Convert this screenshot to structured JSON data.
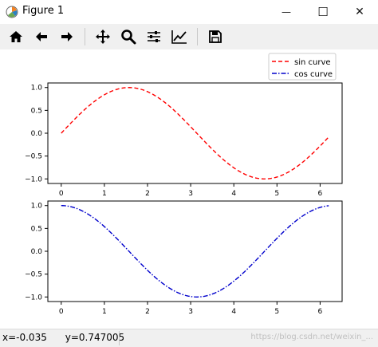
{
  "window": {
    "title": "Figure 1",
    "minimize_glyph": "—",
    "maximize_glyph": "☐",
    "close_glyph": "✕"
  },
  "toolbar": {
    "buttons": [
      "home-icon",
      "back-arrow-icon",
      "forward-arrow-icon",
      "pan-icon",
      "zoom-icon",
      "configure-subplots-icon",
      "edit-axes-icon",
      "save-icon"
    ]
  },
  "legend": {
    "sin_label": "sin curve",
    "cos_label": "cos curve"
  },
  "status": {
    "coords": "x=-0.035      y=0.747005",
    "watermark": "https://blog.csdn.net/weixin_..."
  },
  "chart_data": [
    {
      "type": "line",
      "series": [
        {
          "name": "sin curve",
          "color": "#ff0000",
          "style": "dashed",
          "function": "sin",
          "x": [
            0,
            0.5,
            1.0,
            1.5708,
            2.0,
            2.5,
            3.1416,
            3.5,
            4.0,
            4.7124,
            5.5,
            6.2
          ],
          "y": [
            0,
            0.479,
            0.841,
            1.0,
            0.909,
            0.598,
            0.0,
            -0.351,
            -0.757,
            -1.0,
            -0.706,
            -0.083
          ]
        }
      ],
      "xticks": [
        "0",
        "1",
        "2",
        "3",
        "4",
        "5",
        "6"
      ],
      "yticks": [
        "1.0",
        "0.5",
        "0.0",
        "−0.5",
        "−1.0"
      ],
      "xlim": [
        -0.31,
        6.51
      ],
      "ylim": [
        -1.1,
        1.1
      ]
    },
    {
      "type": "line",
      "series": [
        {
          "name": "cos curve",
          "color": "#0000cc",
          "style": "dashdot",
          "function": "cos",
          "x": [
            0,
            0.5,
            1.0,
            1.5708,
            2.0,
            2.5,
            3.1416,
            3.5,
            4.0,
            4.7124,
            5.5,
            6.2
          ],
          "y": [
            1.0,
            0.878,
            0.54,
            0.0,
            -0.416,
            -0.801,
            -1.0,
            -0.936,
            -0.654,
            0.0,
            0.709,
            0.997
          ]
        }
      ],
      "xticks": [
        "0",
        "1",
        "2",
        "3",
        "4",
        "5",
        "6"
      ],
      "yticks": [
        "1.0",
        "0.5",
        "0.0",
        "−0.5",
        "−1.0"
      ],
      "xlim": [
        -0.31,
        6.51
      ],
      "ylim": [
        -1.1,
        1.1
      ]
    }
  ]
}
